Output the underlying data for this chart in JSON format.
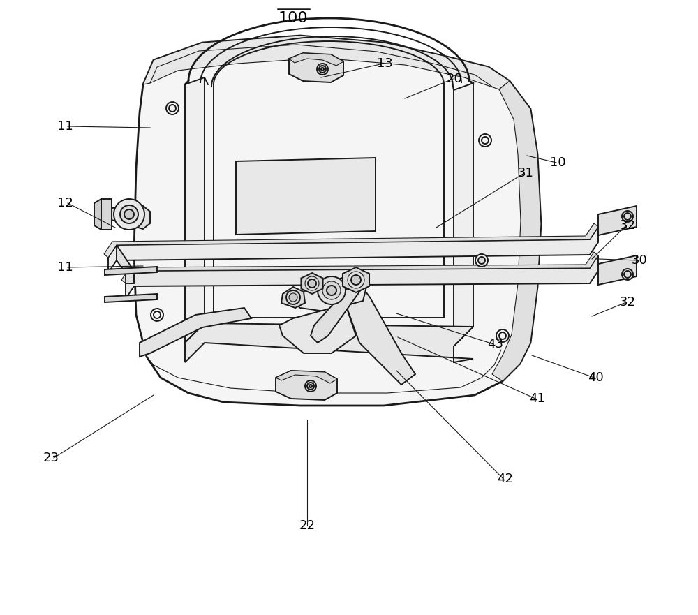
{
  "background_color": "#ffffff",
  "line_color": "#1a1a1a",
  "label_color": "#000000",
  "figsize": [
    10.0,
    8.81
  ],
  "dpi": 100,
  "lw_main": 1.4,
  "lw_thin": 0.8,
  "lw_thick": 2.0,
  "label_fs": 13,
  "title_fs": 16,
  "labels": [
    [
      "100",
      420,
      855,
      395,
      868,
      445,
      868
    ],
    [
      "13",
      540,
      790,
      430,
      760,
      "right"
    ],
    [
      "20",
      640,
      770,
      570,
      740,
      "right"
    ],
    [
      "10",
      790,
      650,
      760,
      660,
      "right"
    ],
    [
      "11",
      105,
      700,
      210,
      695,
      "right"
    ],
    [
      "11",
      105,
      500,
      200,
      490,
      "right"
    ],
    [
      "12",
      105,
      590,
      165,
      545,
      "right"
    ],
    [
      "31",
      745,
      635,
      620,
      555,
      "right"
    ],
    [
      "22",
      440,
      128,
      435,
      278,
      "center"
    ],
    [
      "23",
      85,
      225,
      230,
      310,
      "right"
    ],
    [
      "30",
      910,
      510,
      858,
      512,
      "right"
    ],
    [
      "32",
      890,
      560,
      845,
      510,
      "right"
    ],
    [
      "32",
      890,
      450,
      845,
      430,
      "right"
    ],
    [
      "40",
      845,
      340,
      760,
      370,
      "right"
    ],
    [
      "41",
      760,
      310,
      565,
      400,
      "right"
    ],
    [
      "42",
      715,
      195,
      570,
      350,
      "right"
    ],
    [
      "43",
      700,
      390,
      570,
      435,
      "right"
    ]
  ]
}
